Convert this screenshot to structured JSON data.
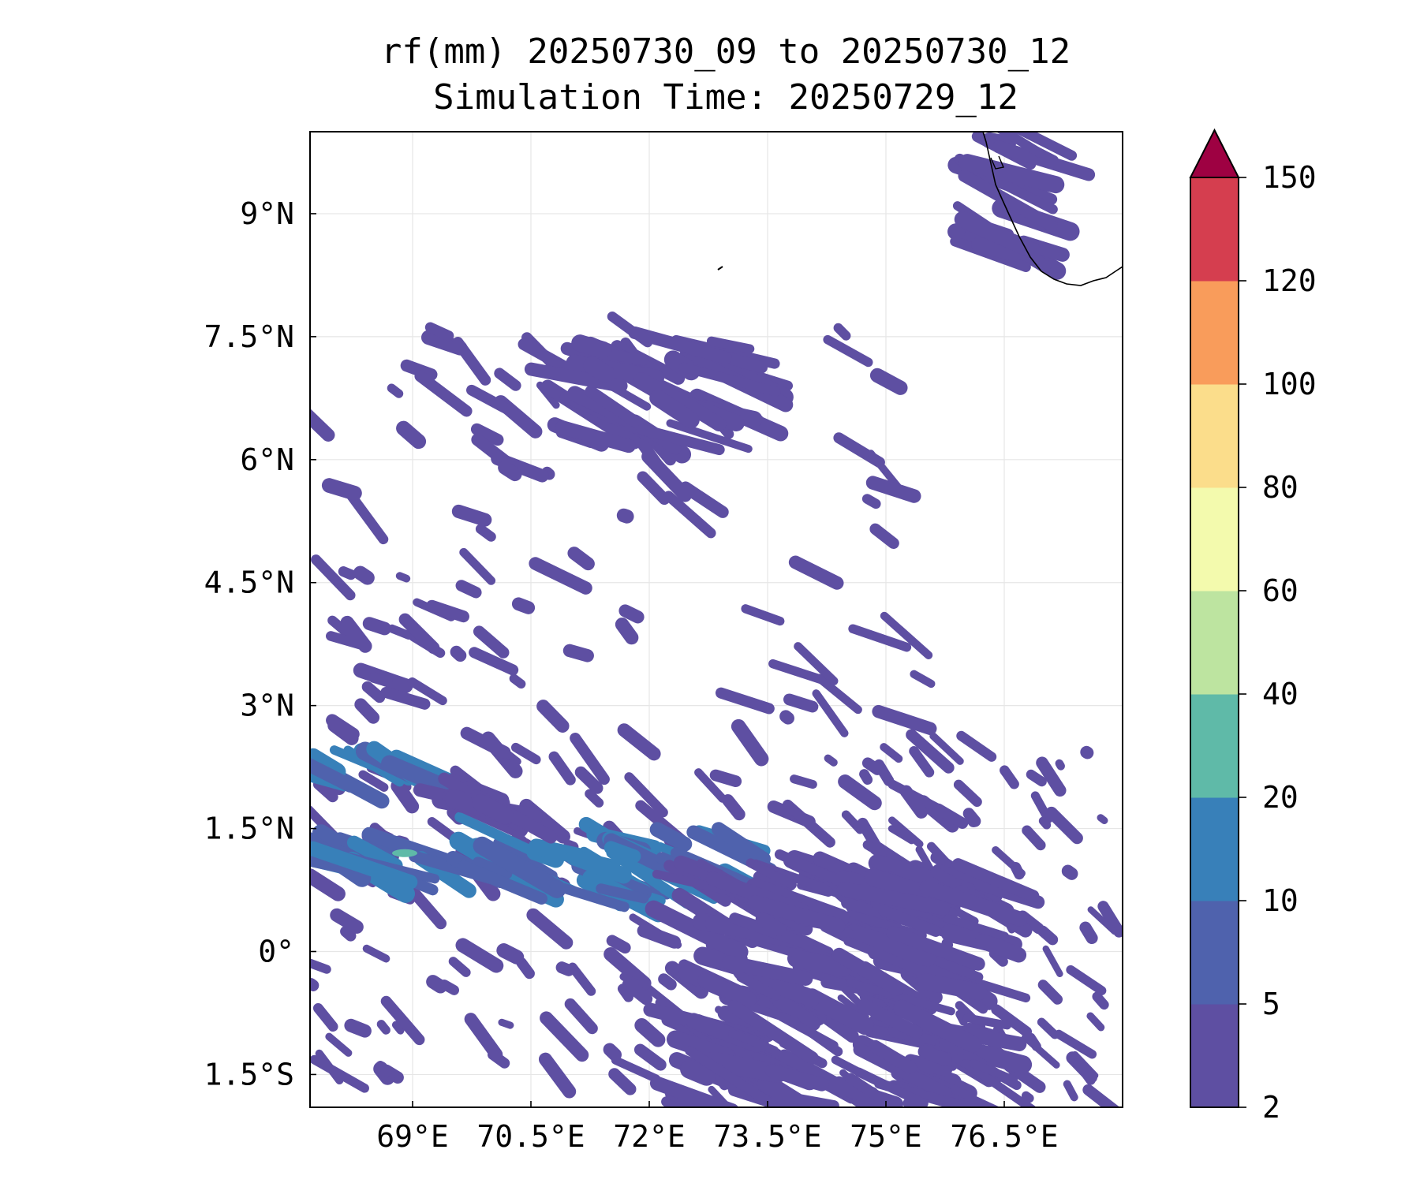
{
  "title": {
    "line1": "rf(mm) 20250730_09 to 20250730_12",
    "line2": "Simulation Time: 20250729_12"
  },
  "map": {
    "lon_range": [
      67.7,
      78.0
    ],
    "lat_range": [
      -1.9,
      10.0
    ],
    "x_ticks": [
      {
        "value": 69.0,
        "label": "69°E"
      },
      {
        "value": 70.5,
        "label": "70.5°E"
      },
      {
        "value": 72.0,
        "label": "72°E"
      },
      {
        "value": 73.5,
        "label": "73.5°E"
      },
      {
        "value": 75.0,
        "label": "75°E"
      },
      {
        "value": 76.5,
        "label": "76.5°E"
      }
    ],
    "y_ticks": [
      {
        "value": 9.0,
        "label": "9°N"
      },
      {
        "value": 7.5,
        "label": "7.5°N"
      },
      {
        "value": 6.0,
        "label": "6°N"
      },
      {
        "value": 4.5,
        "label": "4.5°N"
      },
      {
        "value": 3.0,
        "label": "3°N"
      },
      {
        "value": 1.5,
        "label": "1.5°N"
      },
      {
        "value": 0.0,
        "label": "0°"
      },
      {
        "value": -1.5,
        "label": "1.5°S"
      }
    ],
    "grid": true,
    "grid_color": "#e6e6e6",
    "coastline_color": "#000000"
  },
  "colorbar": {
    "levels": [
      "2",
      "5",
      "10",
      "20",
      "40",
      "60",
      "80",
      "100",
      "120",
      "150"
    ],
    "colors": [
      "#5e4fa2",
      "#4f62ad",
      "#3880b9",
      "#5fbaa8",
      "#bde4a0",
      "#f3faad",
      "#fbdd8b",
      "#f99c5b",
      "#d53e4f"
    ],
    "extend_color": "#9e0142",
    "extend": "max"
  },
  "chart_data": {
    "type": "heatmap",
    "variable": "rf(mm)",
    "period": "20250730_09 to 20250730_12",
    "simulation_time": "20250729_12",
    "bands": [
      {
        "lon": [
          67.7,
          71.0
        ],
        "lat": [
          0.9,
          1.3
        ],
        "value": 12
      },
      {
        "lon": [
          70.0,
          73.3
        ],
        "lat": [
          0.6,
          1.4
        ],
        "value": 12
      },
      {
        "lon": [
          67.7,
          69.2
        ],
        "lat": [
          2.0,
          2.3
        ],
        "value": 12
      },
      {
        "lon": [
          69.5,
          70.3
        ],
        "lat": [
          1.6,
          2.0
        ],
        "value": 7
      },
      {
        "lon": [
          71.0,
          73.2
        ],
        "lat": [
          6.2,
          7.4
        ],
        "value": 5
      },
      {
        "lon": [
          72.5,
          76.5
        ],
        "lat": [
          -1.9,
          1.0
        ],
        "value": 5
      },
      {
        "lon": [
          76.3,
          77.0
        ],
        "lat": [
          8.5,
          10.0
        ],
        "value": 5
      }
    ],
    "max_marker": {
      "lon": 68.9,
      "lat": 1.2,
      "value": 25
    }
  }
}
